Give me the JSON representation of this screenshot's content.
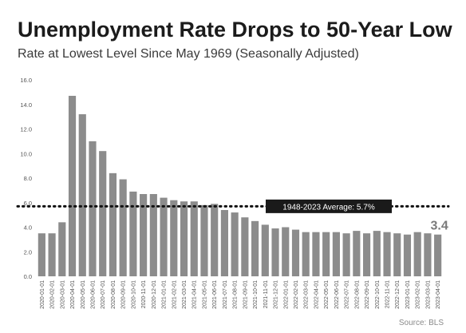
{
  "title": "Unemployment Rate Drops to 50-Year Low",
  "subtitle": "Rate at Lowest Level Since May 1969 (Seasonally Adjusted)",
  "source": "Source: BLS",
  "colors": {
    "bar": "#8c8c8c",
    "text": "#1b1b1b",
    "axis": "#555555",
    "reference_label_bg": "#1a1a1a",
    "reference_label_text": "#ffffff"
  },
  "chart_data": {
    "type": "bar",
    "title": "Unemployment Rate Drops to 50-Year Low",
    "subtitle": "Rate at Lowest Level Since May 1969 (Seasonally Adjusted)",
    "xlabel": "",
    "ylabel": "",
    "ylim": [
      0,
      16
    ],
    "yticks": [
      "0.0",
      "2.0",
      "4.0",
      "6.0",
      "8.0",
      "10.0",
      "12.0",
      "14.0",
      "16.0"
    ],
    "grid": false,
    "categories": [
      "2020-01-01",
      "2020-02-01",
      "2020-03-01",
      "2020-04-01",
      "2020-05-01",
      "2020-06-01",
      "2020-07-01",
      "2020-08-01",
      "2020-09-01",
      "2020-10-01",
      "2020-11-01",
      "2020-12-01",
      "2021-01-01",
      "2021-02-01",
      "2021-03-01",
      "2021-04-01",
      "2021-05-01",
      "2021-06-01",
      "2021-07-01",
      "2021-08-01",
      "2021-09-01",
      "2021-10-01",
      "2021-11-01",
      "2021-12-01",
      "2022-01-01",
      "2022-02-01",
      "2022-03-01",
      "2022-04-01",
      "2022-05-01",
      "2022-06-01",
      "2022-07-01",
      "2022-08-01",
      "2022-09-01",
      "2022-10-01",
      "2022-11-01",
      "2022-12-01",
      "2023-01-01",
      "2023-02-01",
      "2023-03-01",
      "2023-04-01"
    ],
    "values": [
      3.5,
      3.5,
      4.4,
      14.7,
      13.2,
      11.0,
      10.2,
      8.4,
      7.9,
      6.9,
      6.7,
      6.7,
      6.4,
      6.2,
      6.1,
      6.1,
      5.8,
      5.9,
      5.4,
      5.2,
      4.8,
      4.5,
      4.2,
      3.9,
      4.0,
      3.8,
      3.6,
      3.6,
      3.6,
      3.6,
      3.5,
      3.7,
      3.5,
      3.7,
      3.6,
      3.5,
      3.4,
      3.6,
      3.5,
      3.4
    ],
    "reference_line": {
      "value": 5.7,
      "label": "1948-2023 Average: 5.7%"
    },
    "annotation": {
      "text": "3.4"
    }
  }
}
